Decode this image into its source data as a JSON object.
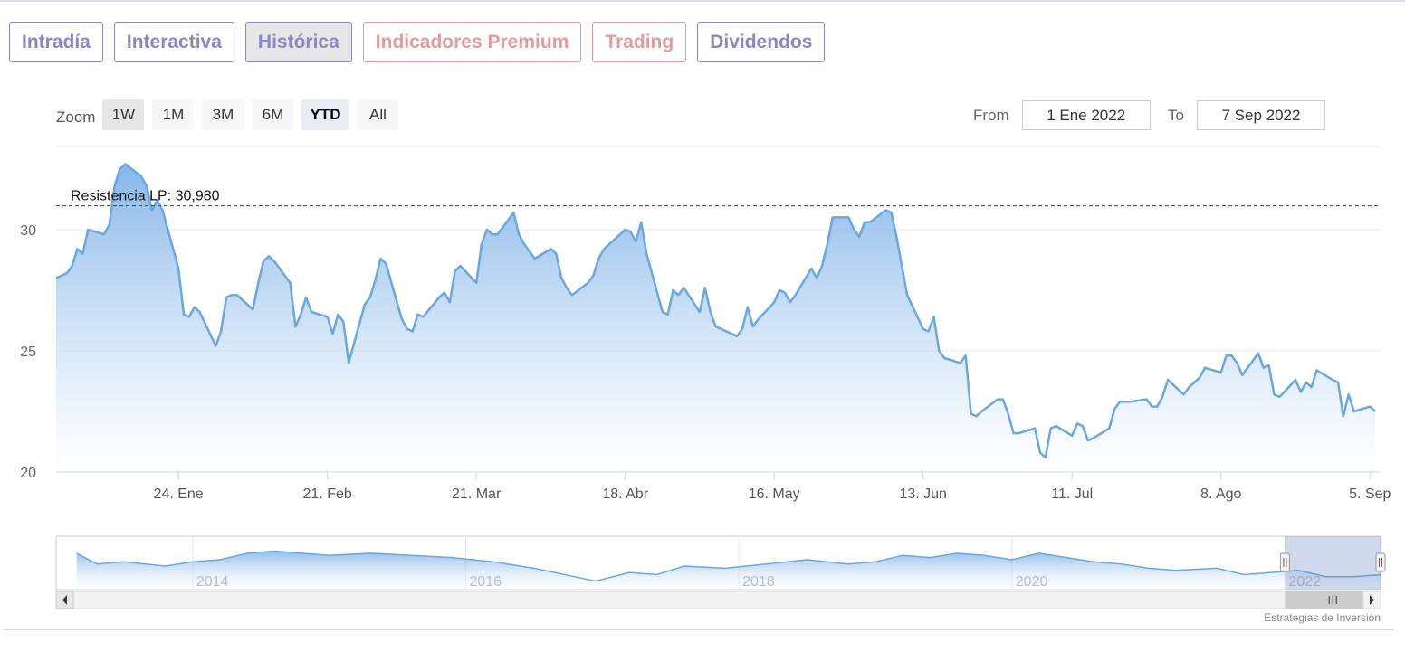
{
  "tabs": [
    {
      "label": "Intradía",
      "style": "normal"
    },
    {
      "label": "Interactiva",
      "style": "normal"
    },
    {
      "label": "Histórica",
      "style": "active"
    },
    {
      "label": "Indicadores Premium",
      "style": "red"
    },
    {
      "label": "Trading",
      "style": "red"
    },
    {
      "label": "Dividendos",
      "style": "normal"
    }
  ],
  "zoom": {
    "label": "Zoom",
    "buttons": [
      {
        "label": "1W",
        "selected": "1w"
      },
      {
        "label": "1M",
        "selected": ""
      },
      {
        "label": "3M",
        "selected": ""
      },
      {
        "label": "6M",
        "selected": ""
      },
      {
        "label": "YTD",
        "selected": "ytd"
      },
      {
        "label": "All",
        "selected": ""
      }
    ]
  },
  "range": {
    "from_label": "From",
    "from_value": "1 Ene 2022",
    "to_label": "To",
    "to_value": "7 Sep 2022"
  },
  "credit": "Estrategias de Inversión",
  "colors": {
    "series": "#6aa7e0",
    "fill_top": "#7fb2e8",
    "resistance": "#1a7a1a",
    "grid": "#e6e6e6",
    "tab": "#8b86c4",
    "tab_red": "#e39b9b"
  },
  "chart_data": {
    "type": "area",
    "ylim": [
      20,
      33.5
    ],
    "yticks": [
      20,
      25,
      30
    ],
    "xlim": [
      "2022-01-01",
      "2022-09-07"
    ],
    "xticks": [
      {
        "date": "2022-01-24",
        "label": "24. Ene"
      },
      {
        "date": "2022-02-21",
        "label": "21. Feb"
      },
      {
        "date": "2022-03-21",
        "label": "21. Mar"
      },
      {
        "date": "2022-04-18",
        "label": "18. Abr"
      },
      {
        "date": "2022-05-16",
        "label": "16. May"
      },
      {
        "date": "2022-06-13",
        "label": "13. Jun"
      },
      {
        "date": "2022-07-11",
        "label": "11. Jul"
      },
      {
        "date": "2022-08-08",
        "label": "8. Ago"
      },
      {
        "date": "2022-09-05",
        "label": "5. Sep"
      }
    ],
    "grid": true,
    "resistance": {
      "label": "Resistencia LP: 30,980",
      "value": 30.98
    },
    "points": [
      [
        "2022-01-01",
        28.0
      ],
      [
        "2022-01-03",
        28.2
      ],
      [
        "2022-01-04",
        28.5
      ],
      [
        "2022-01-05",
        29.2
      ],
      [
        "2022-01-06",
        29.0
      ],
      [
        "2022-01-07",
        30.0
      ],
      [
        "2022-01-10",
        29.8
      ],
      [
        "2022-01-11",
        30.2
      ],
      [
        "2022-01-12",
        31.8
      ],
      [
        "2022-01-13",
        32.5
      ],
      [
        "2022-01-14",
        32.7
      ],
      [
        "2022-01-17",
        32.2
      ],
      [
        "2022-01-18",
        31.8
      ],
      [
        "2022-01-19",
        30.8
      ],
      [
        "2022-01-20",
        31.2
      ],
      [
        "2022-01-21",
        30.8
      ],
      [
        "2022-01-24",
        28.4
      ],
      [
        "2022-01-25",
        26.5
      ],
      [
        "2022-01-26",
        26.4
      ],
      [
        "2022-01-27",
        26.8
      ],
      [
        "2022-01-28",
        26.6
      ],
      [
        "2022-01-31",
        25.2
      ],
      [
        "2022-02-01",
        25.8
      ],
      [
        "2022-02-02",
        27.2
      ],
      [
        "2022-02-03",
        27.3
      ],
      [
        "2022-02-04",
        27.3
      ],
      [
        "2022-02-07",
        26.7
      ],
      [
        "2022-02-08",
        27.8
      ],
      [
        "2022-02-09",
        28.7
      ],
      [
        "2022-02-10",
        28.9
      ],
      [
        "2022-02-11",
        28.7
      ],
      [
        "2022-02-14",
        27.8
      ],
      [
        "2022-02-15",
        26.0
      ],
      [
        "2022-02-16",
        26.5
      ],
      [
        "2022-02-17",
        27.2
      ],
      [
        "2022-02-18",
        26.6
      ],
      [
        "2022-02-21",
        26.4
      ],
      [
        "2022-02-22",
        25.7
      ],
      [
        "2022-02-23",
        26.5
      ],
      [
        "2022-02-24",
        26.2
      ],
      [
        "2022-02-25",
        24.5
      ],
      [
        "2022-02-28",
        26.9
      ],
      [
        "2022-03-01",
        27.2
      ],
      [
        "2022-03-02",
        27.9
      ],
      [
        "2022-03-03",
        28.8
      ],
      [
        "2022-03-04",
        28.6
      ],
      [
        "2022-03-07",
        26.3
      ],
      [
        "2022-03-08",
        25.9
      ],
      [
        "2022-03-09",
        25.8
      ],
      [
        "2022-03-10",
        26.5
      ],
      [
        "2022-03-11",
        26.4
      ],
      [
        "2022-03-14",
        27.2
      ],
      [
        "2022-03-15",
        27.4
      ],
      [
        "2022-03-16",
        27.0
      ],
      [
        "2022-03-17",
        28.3
      ],
      [
        "2022-03-18",
        28.5
      ],
      [
        "2022-03-21",
        27.8
      ],
      [
        "2022-03-22",
        29.4
      ],
      [
        "2022-03-23",
        30.0
      ],
      [
        "2022-03-24",
        29.8
      ],
      [
        "2022-03-25",
        29.8
      ],
      [
        "2022-03-28",
        30.7
      ],
      [
        "2022-03-29",
        29.8
      ],
      [
        "2022-03-30",
        29.4
      ],
      [
        "2022-03-31",
        29.1
      ],
      [
        "2022-04-01",
        28.8
      ],
      [
        "2022-04-04",
        29.2
      ],
      [
        "2022-04-05",
        29.0
      ],
      [
        "2022-04-06",
        28.0
      ],
      [
        "2022-04-07",
        27.6
      ],
      [
        "2022-04-08",
        27.3
      ],
      [
        "2022-04-11",
        27.8
      ],
      [
        "2022-04-12",
        28.1
      ],
      [
        "2022-04-13",
        28.8
      ],
      [
        "2022-04-14",
        29.2
      ],
      [
        "2022-04-18",
        30.0
      ],
      [
        "2022-04-19",
        29.9
      ],
      [
        "2022-04-20",
        29.5
      ],
      [
        "2022-04-21",
        30.3
      ],
      [
        "2022-04-22",
        29.0
      ],
      [
        "2022-04-25",
        26.6
      ],
      [
        "2022-04-26",
        26.5
      ],
      [
        "2022-04-27",
        27.5
      ],
      [
        "2022-04-28",
        27.3
      ],
      [
        "2022-04-29",
        27.6
      ],
      [
        "2022-05-02",
        26.6
      ],
      [
        "2022-05-03",
        27.6
      ],
      [
        "2022-05-04",
        26.6
      ],
      [
        "2022-05-05",
        26.0
      ],
      [
        "2022-05-06",
        25.9
      ],
      [
        "2022-05-09",
        25.6
      ],
      [
        "2022-05-10",
        25.9
      ],
      [
        "2022-05-11",
        26.8
      ],
      [
        "2022-05-12",
        26.0
      ],
      [
        "2022-05-13",
        26.3
      ],
      [
        "2022-05-16",
        27.0
      ],
      [
        "2022-05-17",
        27.5
      ],
      [
        "2022-05-18",
        27.4
      ],
      [
        "2022-05-19",
        27.0
      ],
      [
        "2022-05-20",
        27.3
      ],
      [
        "2022-05-23",
        28.4
      ],
      [
        "2022-05-24",
        28.0
      ],
      [
        "2022-05-25",
        28.5
      ],
      [
        "2022-05-26",
        29.4
      ],
      [
        "2022-05-27",
        30.5
      ],
      [
        "2022-05-30",
        30.5
      ],
      [
        "2022-05-31",
        30.0
      ],
      [
        "2022-06-01",
        29.7
      ],
      [
        "2022-06-02",
        30.3
      ],
      [
        "2022-06-03",
        30.3
      ],
      [
        "2022-06-06",
        30.8
      ],
      [
        "2022-06-07",
        30.7
      ],
      [
        "2022-06-08",
        29.7
      ],
      [
        "2022-06-09",
        28.5
      ],
      [
        "2022-06-10",
        27.3
      ],
      [
        "2022-06-13",
        25.9
      ],
      [
        "2022-06-14",
        25.8
      ],
      [
        "2022-06-15",
        26.4
      ],
      [
        "2022-06-16",
        25.0
      ],
      [
        "2022-06-17",
        24.7
      ],
      [
        "2022-06-20",
        24.5
      ],
      [
        "2022-06-21",
        24.8
      ],
      [
        "2022-06-22",
        22.4
      ],
      [
        "2022-06-23",
        22.3
      ],
      [
        "2022-06-24",
        22.5
      ],
      [
        "2022-06-27",
        23.0
      ],
      [
        "2022-06-28",
        23.0
      ],
      [
        "2022-06-29",
        22.4
      ],
      [
        "2022-06-30",
        21.6
      ],
      [
        "2022-07-01",
        21.6
      ],
      [
        "2022-07-04",
        21.8
      ],
      [
        "2022-07-05",
        20.8
      ],
      [
        "2022-07-06",
        20.6
      ],
      [
        "2022-07-07",
        21.8
      ],
      [
        "2022-07-08",
        21.9
      ],
      [
        "2022-07-11",
        21.5
      ],
      [
        "2022-07-12",
        22.0
      ],
      [
        "2022-07-13",
        21.9
      ],
      [
        "2022-07-14",
        21.3
      ],
      [
        "2022-07-15",
        21.4
      ],
      [
        "2022-07-18",
        21.8
      ],
      [
        "2022-07-19",
        22.6
      ],
      [
        "2022-07-20",
        22.9
      ],
      [
        "2022-07-21",
        22.9
      ],
      [
        "2022-07-22",
        22.9
      ],
      [
        "2022-07-25",
        23.0
      ],
      [
        "2022-07-26",
        22.7
      ],
      [
        "2022-07-27",
        22.7
      ],
      [
        "2022-07-28",
        23.1
      ],
      [
        "2022-07-29",
        23.8
      ],
      [
        "2022-08-01",
        23.2
      ],
      [
        "2022-08-02",
        23.5
      ],
      [
        "2022-08-03",
        23.7
      ],
      [
        "2022-08-04",
        23.9
      ],
      [
        "2022-08-05",
        24.3
      ],
      [
        "2022-08-08",
        24.1
      ],
      [
        "2022-08-09",
        24.8
      ],
      [
        "2022-08-10",
        24.8
      ],
      [
        "2022-08-11",
        24.5
      ],
      [
        "2022-08-12",
        24.0
      ],
      [
        "2022-08-15",
        24.9
      ],
      [
        "2022-08-16",
        24.3
      ],
      [
        "2022-08-17",
        24.4
      ],
      [
        "2022-08-18",
        23.2
      ],
      [
        "2022-08-19",
        23.1
      ],
      [
        "2022-08-22",
        23.8
      ],
      [
        "2022-08-23",
        23.3
      ],
      [
        "2022-08-24",
        23.7
      ],
      [
        "2022-08-25",
        23.5
      ],
      [
        "2022-08-26",
        24.2
      ],
      [
        "2022-08-29",
        23.8
      ],
      [
        "2022-08-30",
        23.7
      ],
      [
        "2022-08-31",
        22.3
      ],
      [
        "2022-09-01",
        23.2
      ],
      [
        "2022-09-02",
        22.5
      ],
      [
        "2022-09-05",
        22.7
      ],
      [
        "2022-09-06",
        22.5
      ]
    ],
    "navigator": {
      "labels": [
        "2014",
        "2016",
        "2018",
        "2020",
        "2022"
      ],
      "xlim": [
        2013.0,
        2022.7
      ],
      "selection": [
        2022.0,
        2022.7
      ],
      "ylim": [
        15,
        40
      ],
      "points": [
        [
          2013.15,
          32
        ],
        [
          2013.3,
          27
        ],
        [
          2013.5,
          28
        ],
        [
          2013.8,
          26
        ],
        [
          2014.0,
          28
        ],
        [
          2014.2,
          29
        ],
        [
          2014.4,
          32
        ],
        [
          2014.6,
          33
        ],
        [
          2014.8,
          32
        ],
        [
          2015.0,
          31
        ],
        [
          2015.3,
          32
        ],
        [
          2015.6,
          31
        ],
        [
          2015.9,
          30
        ],
        [
          2016.2,
          28
        ],
        [
          2016.5,
          25
        ],
        [
          2016.8,
          21
        ],
        [
          2016.95,
          19
        ],
        [
          2017.2,
          23
        ],
        [
          2017.4,
          22
        ],
        [
          2017.6,
          26
        ],
        [
          2017.9,
          25
        ],
        [
          2018.2,
          27
        ],
        [
          2018.5,
          29
        ],
        [
          2018.8,
          27
        ],
        [
          2019.0,
          28
        ],
        [
          2019.2,
          31
        ],
        [
          2019.4,
          30
        ],
        [
          2019.6,
          32
        ],
        [
          2019.8,
          31
        ],
        [
          2020.0,
          29
        ],
        [
          2020.2,
          32
        ],
        [
          2020.4,
          30
        ],
        [
          2020.6,
          28
        ],
        [
          2020.8,
          27
        ],
        [
          2021.0,
          25
        ],
        [
          2021.2,
          24
        ],
        [
          2021.5,
          25
        ],
        [
          2021.7,
          22
        ],
        [
          2021.9,
          23
        ],
        [
          2022.1,
          24
        ],
        [
          2022.3,
          21
        ],
        [
          2022.5,
          21
        ],
        [
          2022.7,
          22
        ]
      ]
    }
  }
}
